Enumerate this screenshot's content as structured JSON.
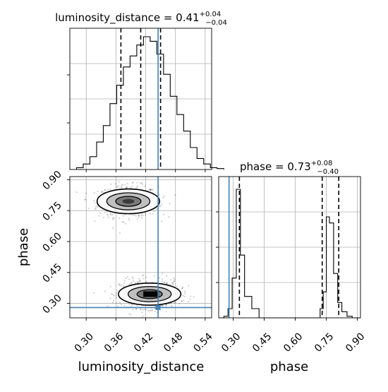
{
  "chart_data": {
    "type": "corner",
    "parameters": [
      "luminosity_distance",
      "phase"
    ],
    "titles": {
      "luminosity_distance": {
        "prefix": "luminosity_distance = 0.41",
        "sup": "+0.04",
        "sub": "−0.04"
      },
      "phase": {
        "prefix": "phase = 0.73",
        "sup": "+0.08",
        "sub": "−0.40"
      }
    },
    "truths": {
      "luminosity_distance": 0.445,
      "phase": 0.28
    },
    "quantiles": {
      "luminosity_distance": [
        0.37,
        0.41,
        0.45
      ],
      "phase": [
        0.33,
        0.73,
        0.81
      ]
    },
    "ranges": {
      "luminosity_distance": [
        0.267,
        0.553
      ],
      "phase": [
        0.23,
        0.915
      ]
    },
    "ticks": {
      "luminosity_distance": [
        "0.30",
        "0.36",
        "0.42",
        "0.48",
        "0.54"
      ],
      "phase": [
        "0.30",
        "0.45",
        "0.60",
        "0.75",
        "0.90"
      ]
    },
    "hist_luminosity_distance": {
      "bin_start": 0.2805,
      "bin_width": 0.0135,
      "counts": [
        2,
        6,
        14,
        30,
        48,
        72,
        92,
        112,
        124,
        136,
        145,
        140,
        126,
        104,
        80,
        60,
        42,
        24,
        12,
        6,
        2,
        1
      ]
    },
    "hist_phase": {
      "edges": [
        0.23,
        0.255,
        0.275,
        0.295,
        0.315,
        0.335,
        0.355,
        0.39,
        0.425,
        0.72,
        0.735,
        0.75,
        0.765,
        0.785,
        0.805,
        0.825,
        0.85,
        0.875,
        0.915
      ],
      "counts": [
        0,
        2,
        12,
        52,
        168,
        82,
        28,
        12,
        0,
        12,
        34,
        132,
        124,
        58,
        20,
        8,
        2,
        0
      ]
    },
    "modes": [
      {
        "x": 0.385,
        "y": 0.795,
        "sx": 0.03,
        "sy": 0.038
      },
      {
        "x": 0.428,
        "y": 0.345,
        "sx": 0.03,
        "sy": 0.034
      }
    ],
    "grid": true
  }
}
